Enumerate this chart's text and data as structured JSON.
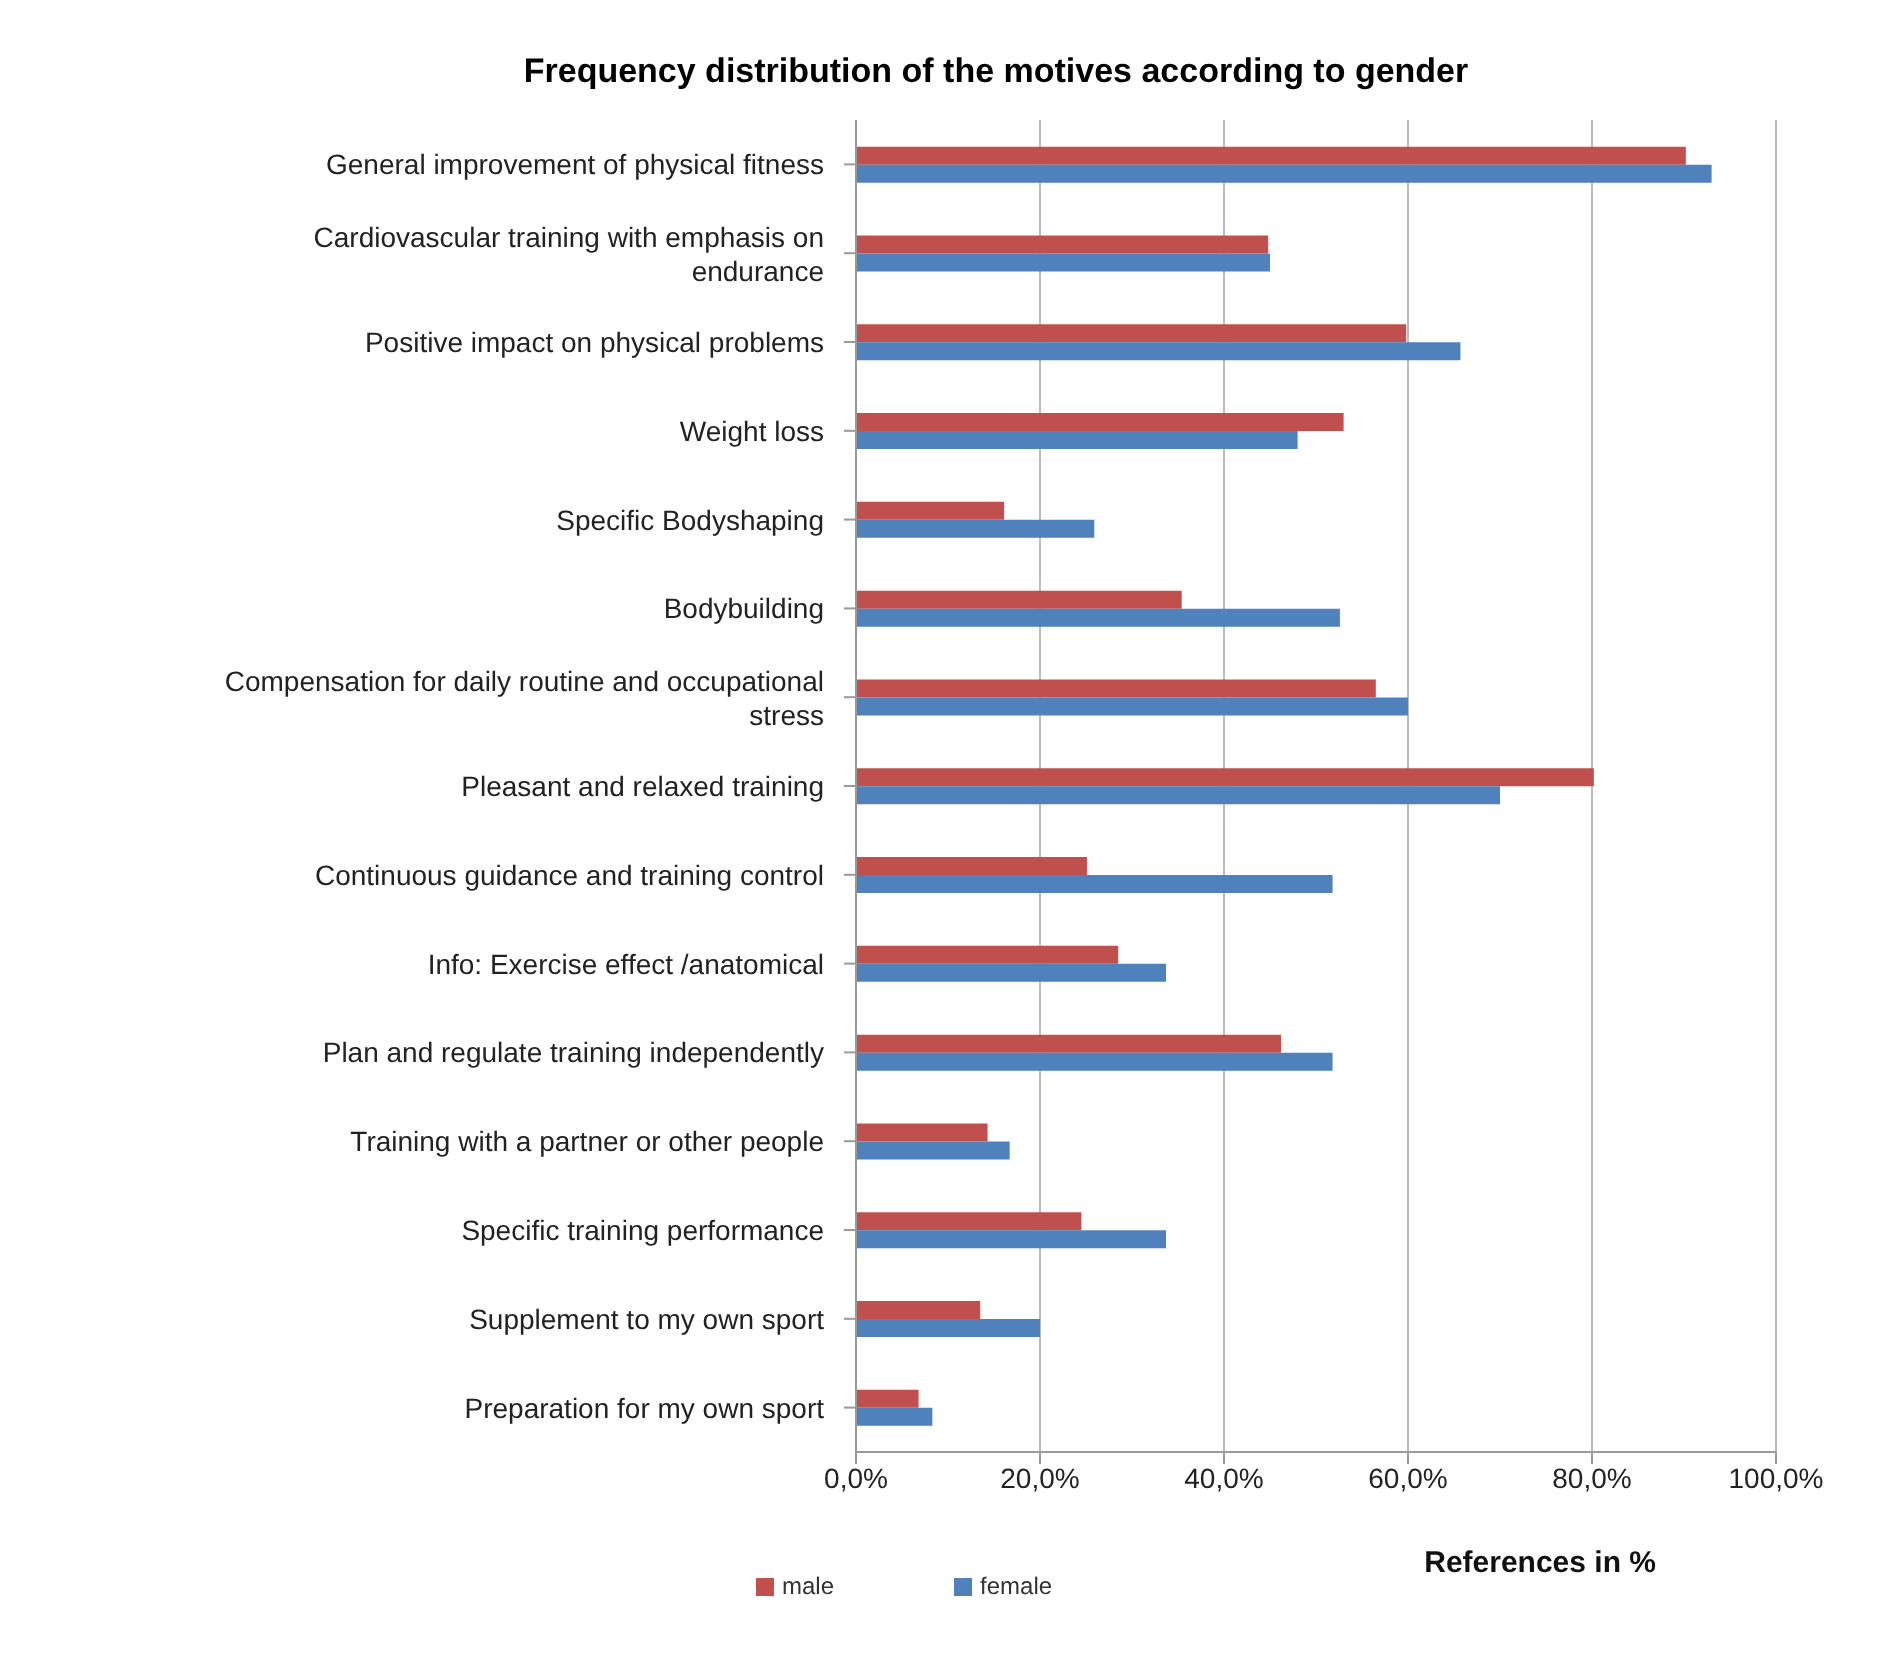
{
  "chart_data": {
    "type": "bar",
    "orientation": "horizontal",
    "title": "Frequency distribution of the motives according to gender",
    "xlabel": "References in  %",
    "categories": [
      "General improvement of physical fitness",
      "Cardiovascular training with emphasis on endurance",
      "Positive impact on physical problems",
      "Weight loss",
      "Specific Bodyshaping",
      "Bodybuilding",
      "Compensation for daily routine and occupational stress",
      "Pleasant and relaxed training",
      "Continuous guidance and training control",
      "Info: Exercise effect /anatomical",
      "Plan and regulate training independently",
      "Training with a partner or other people",
      "Specific training performance",
      "Supplement to my own sport",
      "Preparation for my own sport"
    ],
    "series": [
      {
        "name": "male",
        "color": "#c0504d",
        "values": [
          90.2,
          44.8,
          59.8,
          53,
          16.1,
          35.4,
          56.5,
          80.2,
          25.1,
          28.5,
          46.2,
          14.3,
          24.5,
          13.5,
          6.8
        ]
      },
      {
        "name": "female",
        "color": "#4f81bd",
        "values": [
          93,
          45,
          65.7,
          48,
          25.9,
          52.6,
          60,
          70,
          51.8,
          33.7,
          51.8,
          16.7,
          33.7,
          20,
          8.3
        ]
      }
    ],
    "xlim": [
      0,
      100
    ],
    "xticks": [
      {
        "value": 0,
        "label": "0,0%"
      },
      {
        "value": 20,
        "label": "20,0%"
      },
      {
        "value": 40,
        "label": "40,0%"
      },
      {
        "value": 60,
        "label": "60,0%"
      },
      {
        "value": 80,
        "label": "80,0%"
      },
      {
        "value": 100,
        "label": "100,0%"
      }
    ],
    "grid": "x",
    "legend": "bottom"
  }
}
